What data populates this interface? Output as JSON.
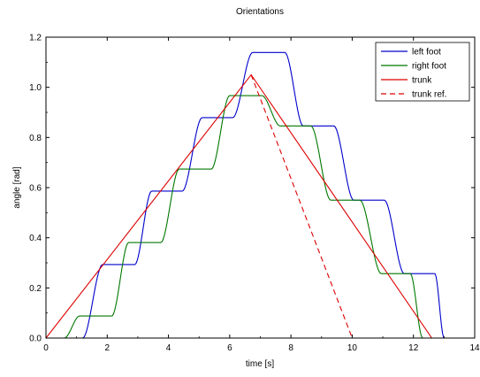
{
  "chart_data": {
    "type": "line",
    "title": "Orientations",
    "xlabel": "time [s]",
    "ylabel": "angle [rad]",
    "xlim": [
      0,
      14
    ],
    "ylim": [
      0,
      1.2
    ],
    "x_ticks": [
      0,
      2,
      4,
      6,
      8,
      10,
      12,
      14
    ],
    "y_ticks": [
      0,
      0.2,
      0.4,
      0.6,
      0.8,
      1.0,
      1.2
    ],
    "x_tick_labels": [
      "0",
      "2",
      "4",
      "6",
      "8",
      "10",
      "12",
      "14"
    ],
    "y_tick_labels": [
      "0.0",
      "0.2",
      "0.4",
      "0.6",
      "0.8",
      "1.0",
      "1.2"
    ],
    "grid": false,
    "legend_position": "top-right",
    "series": [
      {
        "name": "left foot",
        "color": "#0000cc",
        "style": "solid",
        "steps": [
          {
            "t0": 1.2,
            "t1": 1.85,
            "y0": 0,
            "y1": 0.293
          },
          {
            "t0": 2.9,
            "t1": 3.45,
            "y0": 0.293,
            "y1": 0.586
          },
          {
            "t0": 4.45,
            "t1": 5.1,
            "y0": 0.586,
            "y1": 0.879
          },
          {
            "t0": 6.1,
            "t1": 6.75,
            "y0": 0.879,
            "y1": 1.139
          },
          {
            "t0": 7.8,
            "t1": 8.4,
            "y0": 1.139,
            "y1": 0.846
          },
          {
            "t0": 9.4,
            "t1": 10.05,
            "y0": 0.846,
            "y1": 0.55
          },
          {
            "t0": 11.05,
            "t1": 11.7,
            "y0": 0.55,
            "y1": 0.257
          },
          {
            "t0": 12.7,
            "t1": 13.0,
            "y0": 0.257,
            "y1": 0
          }
        ]
      },
      {
        "name": "right foot",
        "color": "#007700",
        "style": "solid",
        "steps": [
          {
            "t0": 0.6,
            "t1": 1.1,
            "y0": 0,
            "y1": 0.088
          },
          {
            "t0": 2.15,
            "t1": 2.7,
            "y0": 0.088,
            "y1": 0.381
          },
          {
            "t0": 3.75,
            "t1": 4.35,
            "y0": 0.381,
            "y1": 0.674
          },
          {
            "t0": 5.4,
            "t1": 6.0,
            "y0": 0.674,
            "y1": 0.967
          },
          {
            "t0": 7.05,
            "t1": 7.65,
            "y0": 0.967,
            "y1": 0.846
          },
          {
            "t0": 8.65,
            "t1": 9.3,
            "y0": 0.846,
            "y1": 0.55
          },
          {
            "t0": 10.25,
            "t1": 10.95,
            "y0": 0.55,
            "y1": 0.257
          },
          {
            "t0": 11.9,
            "t1": 12.3,
            "y0": 0.257,
            "y1": 0
          }
        ]
      },
      {
        "name": "trunk",
        "color": "#dd0000",
        "style": "solid",
        "x": [
          0,
          6.7,
          12.6
        ],
        "y": [
          0,
          1.05,
          0
        ]
      },
      {
        "name": "trunk ref.",
        "color": "#dd0000",
        "style": "dashed",
        "x": [
          6.7,
          10.0
        ],
        "y": [
          1.05,
          0
        ]
      }
    ]
  }
}
